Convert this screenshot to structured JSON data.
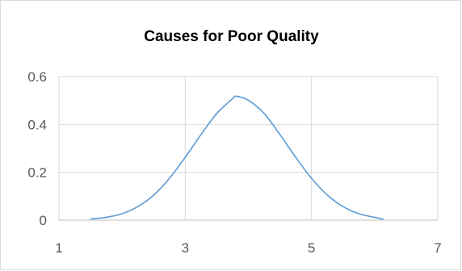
{
  "chart_data": {
    "type": "line",
    "title": "Causes for Poor Quality",
    "xlabel": "",
    "ylabel": "",
    "xlim": [
      1,
      7
    ],
    "ylim": [
      0,
      0.6
    ],
    "x_ticks": [
      1,
      3,
      5,
      7
    ],
    "y_ticks": [
      0,
      0.2,
      0.4,
      0.6
    ],
    "x_tick_labels": [
      "1",
      "3",
      "5",
      "7"
    ],
    "y_tick_labels": [
      "0",
      "0.2",
      "0.4",
      "0.6"
    ],
    "grid": true,
    "legend": "none",
    "series": [
      {
        "color": "#5b9bd5",
        "x": [
          1.5,
          1.75,
          2.0,
          2.25,
          2.5,
          2.75,
          3.0,
          3.25,
          3.5,
          3.75,
          3.8,
          4.0,
          4.25,
          4.5,
          4.75,
          5.0,
          5.25,
          5.5,
          5.75,
          6.0,
          6.14
        ],
        "y": [
          0.005,
          0.012,
          0.027,
          0.057,
          0.105,
          0.175,
          0.263,
          0.358,
          0.446,
          0.508,
          0.518,
          0.501,
          0.446,
          0.358,
          0.263,
          0.175,
          0.105,
          0.057,
          0.027,
          0.012,
          0.004
        ]
      }
    ]
  }
}
